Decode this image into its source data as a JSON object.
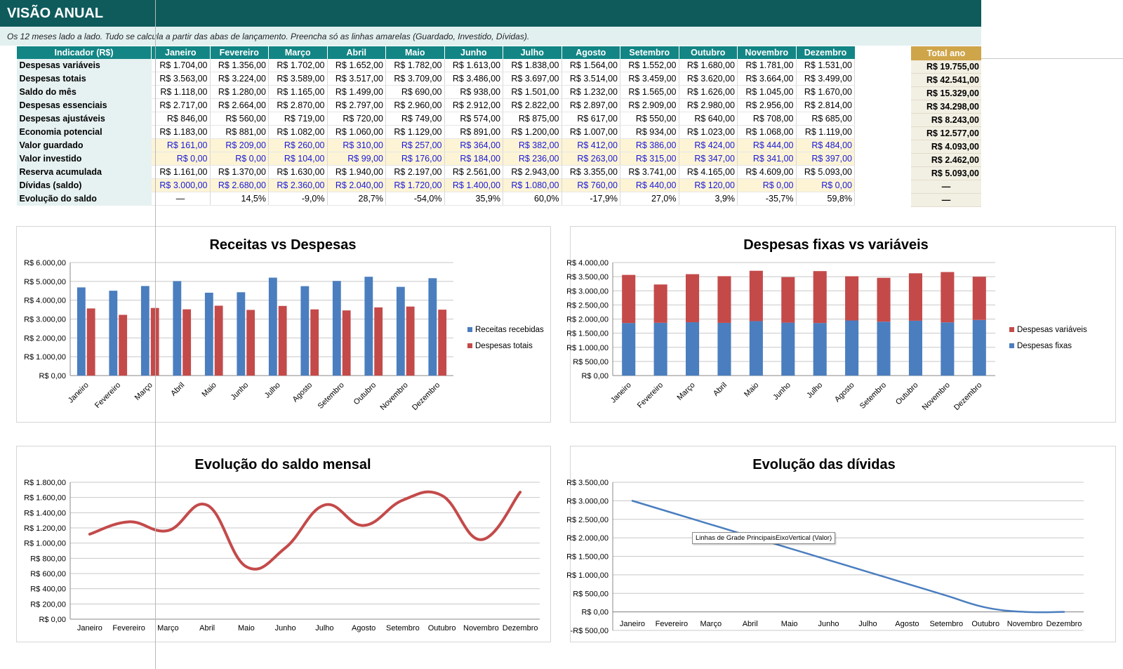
{
  "header": {
    "title": "VISÃO ANUAL",
    "subtitle": "Os 12 meses lado a lado. Tudo se calcula a partir das abas de lançamento. Preencha só as linhas amarelas (Guardado, Investido, Dívidas)."
  },
  "table": {
    "indicator_header": "Indicador (R$)",
    "months": [
      "Janeiro",
      "Fevereiro",
      "Março",
      "Abril",
      "Maio",
      "Junho",
      "Julho",
      "Agosto",
      "Setembro",
      "Outubro",
      "Novembro",
      "Dezembro"
    ],
    "total_header": "Total ano",
    "rows": [
      {
        "label": "Despesas variáveis",
        "yellow": false,
        "values": [
          "R$ 1.704,00",
          "R$ 1.356,00",
          "R$ 1.702,00",
          "R$ 1.652,00",
          "R$ 1.782,00",
          "R$ 1.613,00",
          "R$ 1.838,00",
          "R$ 1.564,00",
          "R$ 1.552,00",
          "R$ 1.680,00",
          "R$ 1.781,00",
          "R$ 1.531,00"
        ],
        "total": "R$ 19.755,00"
      },
      {
        "label": "Despesas totais",
        "yellow": false,
        "values": [
          "R$ 3.563,00",
          "R$ 3.224,00",
          "R$ 3.589,00",
          "R$ 3.517,00",
          "R$ 3.709,00",
          "R$ 3.486,00",
          "R$ 3.697,00",
          "R$ 3.514,00",
          "R$ 3.459,00",
          "R$ 3.620,00",
          "R$ 3.664,00",
          "R$ 3.499,00"
        ],
        "total": "R$ 42.541,00"
      },
      {
        "label": "Saldo do mês",
        "yellow": false,
        "values": [
          "R$ 1.118,00",
          "R$ 1.280,00",
          "R$ 1.165,00",
          "R$ 1.499,00",
          "R$ 690,00",
          "R$ 938,00",
          "R$ 1.501,00",
          "R$ 1.232,00",
          "R$ 1.565,00",
          "R$ 1.626,00",
          "R$ 1.045,00",
          "R$ 1.670,00"
        ],
        "total": "R$ 15.329,00"
      },
      {
        "label": "Despesas essenciais",
        "yellow": false,
        "values": [
          "R$ 2.717,00",
          "R$ 2.664,00",
          "R$ 2.870,00",
          "R$ 2.797,00",
          "R$ 2.960,00",
          "R$ 2.912,00",
          "R$ 2.822,00",
          "R$ 2.897,00",
          "R$ 2.909,00",
          "R$ 2.980,00",
          "R$ 2.956,00",
          "R$ 2.814,00"
        ],
        "total": "R$ 34.298,00"
      },
      {
        "label": "Despesas ajustáveis",
        "yellow": false,
        "values": [
          "R$ 846,00",
          "R$ 560,00",
          "R$ 719,00",
          "R$ 720,00",
          "R$ 749,00",
          "R$ 574,00",
          "R$ 875,00",
          "R$ 617,00",
          "R$ 550,00",
          "R$ 640,00",
          "R$ 708,00",
          "R$ 685,00"
        ],
        "total": "R$ 8.243,00"
      },
      {
        "label": "Economia potencial",
        "yellow": false,
        "values": [
          "R$ 1.183,00",
          "R$ 881,00",
          "R$ 1.082,00",
          "R$ 1.060,00",
          "R$ 1.129,00",
          "R$ 891,00",
          "R$ 1.200,00",
          "R$ 1.007,00",
          "R$ 934,00",
          "R$ 1.023,00",
          "R$ 1.068,00",
          "R$ 1.119,00"
        ],
        "total": "R$ 12.577,00"
      },
      {
        "label": "Valor guardado",
        "yellow": true,
        "values": [
          "R$ 161,00",
          "R$ 209,00",
          "R$ 260,00",
          "R$ 310,00",
          "R$ 257,00",
          "R$ 364,00",
          "R$ 382,00",
          "R$ 412,00",
          "R$ 386,00",
          "R$ 424,00",
          "R$ 444,00",
          "R$ 484,00"
        ],
        "total": "R$ 4.093,00"
      },
      {
        "label": "Valor investido",
        "yellow": true,
        "values": [
          "R$ 0,00",
          "R$ 0,00",
          "R$ 104,00",
          "R$ 99,00",
          "R$ 176,00",
          "R$ 184,00",
          "R$ 236,00",
          "R$ 263,00",
          "R$ 315,00",
          "R$ 347,00",
          "R$ 341,00",
          "R$ 397,00"
        ],
        "total": "R$ 2.462,00"
      },
      {
        "label": "Reserva acumulada",
        "yellow": false,
        "values": [
          "R$ 1.161,00",
          "R$ 1.370,00",
          "R$ 1.630,00",
          "R$ 1.940,00",
          "R$ 2.197,00",
          "R$ 2.561,00",
          "R$ 2.943,00",
          "R$ 3.355,00",
          "R$ 3.741,00",
          "R$ 4.165,00",
          "R$ 4.609,00",
          "R$ 5.093,00"
        ],
        "total": "R$ 5.093,00"
      },
      {
        "label": "Dívidas (saldo)",
        "yellow": true,
        "values": [
          "R$ 3.000,00",
          "R$ 2.680,00",
          "R$ 2.360,00",
          "R$ 2.040,00",
          "R$ 1.720,00",
          "R$ 1.400,00",
          "R$ 1.080,00",
          "R$ 760,00",
          "R$ 440,00",
          "R$ 120,00",
          "R$ 0,00",
          "R$ 0,00"
        ],
        "total": "—"
      },
      {
        "label": "Evolução do saldo",
        "yellow": false,
        "values": [
          "—",
          "14,5%",
          "-9,0%",
          "28,7%",
          "-54,0%",
          "35,9%",
          "60,0%",
          "-17,9%",
          "27,0%",
          "3,9%",
          "-35,7%",
          "59,8%"
        ],
        "total": "—"
      }
    ]
  },
  "colors": {
    "blue": "#4a7ebf",
    "red": "#c44a4a",
    "header_teal": "#0f5b5c",
    "table_header": "#138585",
    "total_header": "#cfa54a",
    "yellow_cell": "#fdf4d6",
    "input_text": "#1a1ad6"
  },
  "chart_data": [
    {
      "id": "receitas-vs-despesas",
      "type": "bar",
      "title": "Receitas vs Despesas",
      "categories": [
        "Janeiro",
        "Fevereiro",
        "Março",
        "Abril",
        "Maio",
        "Junho",
        "Julho",
        "Agosto",
        "Setembro",
        "Outubro",
        "Novembro",
        "Dezembro"
      ],
      "series": [
        {
          "name": "Receitas recebidas",
          "color": "#4a7ebf",
          "values": [
            4681,
            4504,
            4754,
            5016,
            4399,
            4424,
            5198,
            4746,
            5024,
            5246,
            4709,
            5169
          ]
        },
        {
          "name": "Despesas totais",
          "color": "#c44a4a",
          "values": [
            3563,
            3224,
            3589,
            3517,
            3709,
            3486,
            3697,
            3514,
            3459,
            3620,
            3664,
            3499
          ]
        }
      ],
      "ylim": [
        0,
        6000
      ],
      "yticks": [
        0,
        1000,
        2000,
        3000,
        4000,
        5000,
        6000
      ],
      "ytick_labels": [
        "R$ 0,00",
        "R$ 1.000,00",
        "R$ 2.000,00",
        "R$ 3.000,00",
        "R$ 4.000,00",
        "R$ 5.000,00",
        "R$ 6.000,00"
      ],
      "grid": true,
      "legend": "right"
    },
    {
      "id": "fixas-vs-variaveis",
      "type": "bar",
      "stacked": true,
      "title": "Despesas fixas vs variáveis",
      "categories": [
        "Janeiro",
        "Fevereiro",
        "Março",
        "Abril",
        "Maio",
        "Junho",
        "Julho",
        "Agosto",
        "Setembro",
        "Outubro",
        "Novembro",
        "Dezembro"
      ],
      "series": [
        {
          "name": "Despesas fixas",
          "color": "#4a7ebf",
          "values": [
            1859,
            1868,
            1887,
            1865,
            1927,
            1873,
            1859,
            1950,
            1907,
            1940,
            1883,
            1968
          ]
        },
        {
          "name": "Despesas variáveis",
          "color": "#c44a4a",
          "values": [
            1704,
            1356,
            1702,
            1652,
            1782,
            1613,
            1838,
            1564,
            1552,
            1680,
            1781,
            1531
          ]
        }
      ],
      "legend_order": [
        "Despesas variáveis",
        "Despesas fixas"
      ],
      "ylim": [
        0,
        4000
      ],
      "yticks": [
        0,
        500,
        1000,
        1500,
        2000,
        2500,
        3000,
        3500,
        4000
      ],
      "ytick_labels": [
        "R$ 0,00",
        "R$ 500,00",
        "R$ 1.000,00",
        "R$ 1.500,00",
        "R$ 2.000,00",
        "R$ 2.500,00",
        "R$ 3.000,00",
        "R$ 3.500,00",
        "R$ 4.000,00"
      ],
      "grid": true,
      "legend": "right"
    },
    {
      "id": "evolucao-saldo",
      "type": "line",
      "smooth": true,
      "title": "Evolução do saldo mensal",
      "categories": [
        "Janeiro",
        "Fevereiro",
        "Março",
        "Abril",
        "Maio",
        "Junho",
        "Julho",
        "Agosto",
        "Setembro",
        "Outubro",
        "Novembro",
        "Dezembro"
      ],
      "series": [
        {
          "name": "",
          "color": "#c44a4a",
          "values": [
            1118,
            1280,
            1165,
            1499,
            690,
            938,
            1501,
            1232,
            1565,
            1626,
            1045,
            1670
          ]
        }
      ],
      "ylim": [
        0,
        1800
      ],
      "yticks": [
        0,
        200,
        400,
        600,
        800,
        1000,
        1200,
        1400,
        1600,
        1800
      ],
      "ytick_labels": [
        "R$ 0,00",
        "R$ 200,00",
        "R$ 400,00",
        "R$ 600,00",
        "R$ 800,00",
        "R$ 1.000,00",
        "R$ 1.200,00",
        "R$ 1.400,00",
        "R$ 1.600,00",
        "R$ 1.800,00"
      ],
      "grid": true
    },
    {
      "id": "evolucao-dividas",
      "type": "line",
      "smooth": true,
      "title": "Evolução das dívidas",
      "categories": [
        "Janeiro",
        "Fevereiro",
        "Março",
        "Abril",
        "Maio",
        "Junho",
        "Julho",
        "Agosto",
        "Setembro",
        "Outubro",
        "Novembro",
        "Dezembro"
      ],
      "series": [
        {
          "name": "",
          "color": "#4a7ebf",
          "values": [
            3000,
            2680,
            2360,
            2040,
            1720,
            1400,
            1080,
            760,
            440,
            120,
            0,
            0
          ]
        }
      ],
      "ylim": [
        -500,
        3500
      ],
      "yticks": [
        -500,
        0,
        500,
        1000,
        1500,
        2000,
        2500,
        3000,
        3500
      ],
      "ytick_labels": [
        "-R$ 500,00",
        "R$ 0,00",
        "R$ 500,00",
        "R$ 1.000,00",
        "R$ 1.500,00",
        "R$ 2.000,00",
        "R$ 2.500,00",
        "R$ 3.000,00",
        "R$ 3.500,00"
      ],
      "grid": true
    }
  ],
  "tooltip": {
    "text": "Linhas de Grade PrincipaisEixoVertical (Valor)"
  }
}
